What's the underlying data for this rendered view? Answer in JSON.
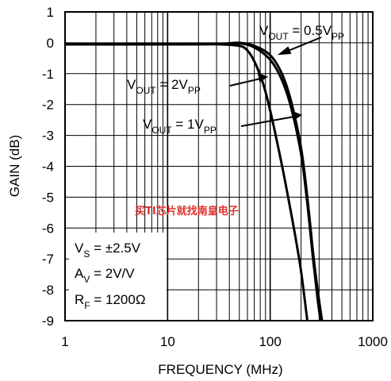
{
  "chart_data": {
    "type": "line",
    "xlabel": "FREQUENCY (MHz)",
    "ylabel": "GAIN (dB)",
    "xscale": "log",
    "xlim": [
      1,
      1000
    ],
    "ylim": [
      -9,
      1
    ],
    "grid": true,
    "x_ticks": [
      "1",
      "10",
      "100",
      "1000"
    ],
    "y_ticks": [
      "1",
      "0",
      "-1",
      "-2",
      "-3",
      "-4",
      "-5",
      "-6",
      "-7",
      "-8",
      "-9"
    ],
    "series": [
      {
        "name_parts": [
          "V",
          "OUT",
          " = 0.5V",
          "PP"
        ],
        "x": [
          1,
          10,
          30,
          50,
          70,
          100,
          130,
          160,
          200,
          230,
          260,
          290,
          320
        ],
        "y": [
          -0.05,
          -0.05,
          -0.04,
          0.0,
          -0.1,
          -0.4,
          -1.0,
          -1.9,
          -3.4,
          -5.0,
          -6.7,
          -8.0,
          -9.0
        ]
      },
      {
        "name_parts": [
          "V",
          "OUT",
          " = 1V",
          "PP"
        ],
        "x": [
          1,
          10,
          30,
          50,
          70,
          100,
          130,
          160,
          200,
          230,
          260,
          290,
          310
        ],
        "y": [
          -0.05,
          -0.05,
          -0.04,
          -0.02,
          -0.15,
          -0.55,
          -1.2,
          -2.1,
          -3.6,
          -5.2,
          -6.9,
          -8.3,
          -9.0
        ]
      },
      {
        "name_parts": [
          "V",
          "OUT",
          " = 2V",
          "PP"
        ],
        "x": [
          1,
          10,
          30,
          50,
          60,
          70,
          85,
          100,
          120,
          140,
          170,
          200,
          230
        ],
        "y": [
          -0.05,
          -0.05,
          -0.05,
          -0.1,
          -0.25,
          -0.6,
          -1.3,
          -2.2,
          -3.4,
          -4.5,
          -6.0,
          -7.4,
          -9.0
        ]
      }
    ],
    "conditions": [
      {
        "parts": [
          "V",
          "S",
          " = ±2.5V"
        ]
      },
      {
        "parts": [
          "A",
          "V",
          " = 2V/V"
        ]
      },
      {
        "parts": [
          "R",
          "F",
          " = 1200Ω"
        ]
      }
    ]
  },
  "watermark": "买TI芯片就找南皇电子",
  "colors": {
    "line": "#000000",
    "grid": "#000000",
    "watermark": "#e0312b"
  }
}
